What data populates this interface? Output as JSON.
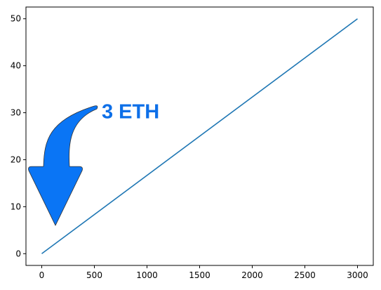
{
  "chart_data": {
    "type": "line",
    "title": "",
    "xlabel": "",
    "ylabel": "",
    "xlim": [
      -150,
      3150
    ],
    "ylim": [
      -2.5,
      52.5
    ],
    "xticks": [
      0,
      500,
      1000,
      1500,
      2000,
      2500,
      3000
    ],
    "yticks": [
      0,
      10,
      20,
      30,
      40,
      50
    ],
    "xtick_labels": [
      "0",
      "500",
      "1000",
      "1500",
      "2000",
      "2500",
      "3000"
    ],
    "ytick_labels": [
      "0",
      "10",
      "20",
      "30",
      "40",
      "50"
    ],
    "grid": false,
    "legend": "none",
    "series": [
      {
        "x": [
          0,
          3000
        ],
        "y": [
          0,
          50
        ],
        "color": "#1f77b4"
      }
    ],
    "annotation": {
      "text": "3 ETH",
      "color": "#0d6fe8",
      "x": 570,
      "y": 30.3,
      "arrow": {
        "color": "#0a75f5",
        "edge_color": "#333333",
        "shape": "curved-down-arrow",
        "tip_x": 130,
        "tip_y": 6
      }
    }
  }
}
